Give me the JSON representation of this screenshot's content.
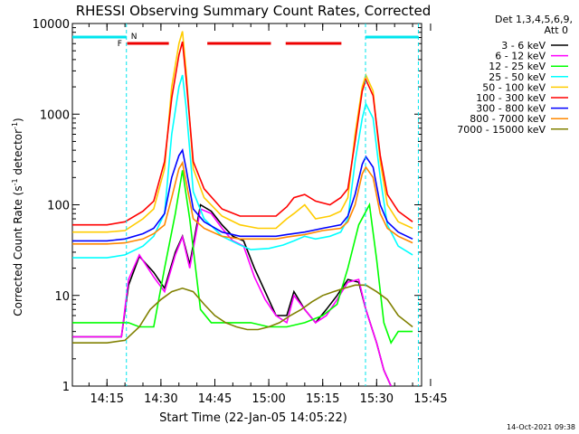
{
  "chart_data": {
    "type": "line",
    "title": "RHESSI Observing Summary Count Rates, Corrected",
    "ylabel": "Corrected Count Rate (s",
    "ylabel_sup1": "-1",
    "ylabel_mid": " detector",
    "ylabel_sup2": "-1",
    "ylabel_end": ")",
    "xlabel": "Start Time (22-Jan-05 14:05:22)",
    "y_scale": "log",
    "ylim": [
      1,
      10000
    ],
    "xlim_min": [
      5.37,
      102.5
    ],
    "ytick_values": [
      1,
      10,
      100,
      1000,
      10000
    ],
    "ytick_labels": [
      "1",
      "10",
      "100",
      "1000",
      "10000"
    ],
    "xtick_values": [
      15,
      30,
      45,
      60,
      75,
      90,
      105
    ],
    "xtick_labels": [
      "14:15",
      "14:30",
      "14:45",
      "15:00",
      "15:15",
      "15:30",
      "15:45"
    ],
    "legend_header": "Det 1,3,4,5,6,9,",
    "legend_subheader": "Att 0",
    "footer_date": "14-Oct-2021 09:38",
    "flag_labels": {
      "night": "N",
      "flare": "F"
    },
    "markers": {
      "night_lines_min": [
        20.4,
        86.9,
        101.6
      ],
      "night_bars": [
        [
          5.37,
          20.4
        ],
        [
          86.9,
          101.6
        ]
      ],
      "flare_bars": [
        [
          20.6,
          32.2
        ],
        [
          42.9,
          60.6
        ],
        [
          64.7,
          80.2
        ]
      ]
    },
    "series": [
      {
        "name": "3 - 6 keV",
        "color": "#000000",
        "x": [
          5.4,
          15,
          19,
          21,
          24,
          28,
          31,
          34,
          36,
          38,
          41,
          44,
          47,
          50,
          53,
          56,
          59,
          62,
          65,
          67,
          70,
          73,
          76,
          79,
          82,
          85,
          87,
          90,
          92,
          94
        ],
        "y": [
          3.5,
          3.5,
          3.5,
          13,
          27,
          18,
          12,
          30,
          45,
          22,
          100,
          85,
          60,
          45,
          40,
          20,
          11,
          6,
          6,
          11,
          7,
          5,
          7,
          10,
          15,
          14,
          7,
          3,
          1.5,
          1
        ]
      },
      {
        "name": "6 - 12 keV",
        "color": "#ff00ff",
        "x": [
          5.4,
          15,
          19,
          21,
          24,
          28,
          31,
          34,
          36,
          38,
          41,
          44,
          47,
          50,
          53,
          56,
          59,
          62,
          65,
          67,
          70,
          73,
          76,
          79,
          82,
          85,
          87,
          90,
          92,
          94
        ],
        "y": [
          3.5,
          3.5,
          3.5,
          15,
          28,
          16,
          11,
          28,
          44,
          20,
          90,
          80,
          55,
          40,
          35,
          16,
          9,
          6,
          5,
          10,
          7,
          5,
          6,
          9,
          14,
          15,
          7,
          3,
          1.5,
          1
        ]
      },
      {
        "name": "12 - 25 keV",
        "color": "#00ff00",
        "x": [
          5.4,
          15,
          19,
          21,
          24,
          28,
          31,
          34,
          36,
          38,
          41,
          44,
          47,
          50,
          55,
          60,
          65,
          70,
          75,
          79,
          82,
          85,
          88,
          90,
          92,
          94,
          96,
          99,
          100
        ],
        "y": [
          5,
          5,
          5,
          5,
          4.5,
          4.5,
          20,
          80,
          240,
          70,
          7,
          5,
          5,
          5,
          5,
          4.5,
          4.5,
          5,
          6,
          8,
          20,
          60,
          100,
          25,
          5,
          3,
          4,
          4,
          4
        ]
      },
      {
        "name": "25 - 50 keV",
        "color": "#00ffff",
        "x": [
          5.4,
          15,
          20,
          25,
          28,
          31,
          33,
          35,
          36,
          37,
          39,
          42,
          47,
          52,
          55,
          60,
          64,
          67,
          70,
          73,
          77,
          80,
          82,
          84,
          86,
          87,
          89,
          91,
          93,
          96,
          100
        ],
        "y": [
          26,
          26,
          28,
          35,
          45,
          80,
          600,
          2000,
          2700,
          1200,
          140,
          70,
          45,
          36,
          32,
          33,
          36,
          40,
          45,
          42,
          45,
          50,
          70,
          300,
          900,
          1300,
          900,
          200,
          60,
          35,
          28
        ]
      },
      {
        "name": "50 - 100 keV",
        "color": "#ffcc00",
        "x": [
          5.4,
          15,
          20,
          25,
          28,
          31,
          33,
          35,
          36,
          37,
          39,
          42,
          47,
          52,
          57,
          62,
          65,
          67,
          70,
          73,
          77,
          80,
          82,
          84,
          86,
          87,
          89,
          91,
          93,
          96,
          100
        ],
        "y": [
          50,
          50,
          52,
          70,
          90,
          250,
          2000,
          6000,
          8200,
          3000,
          250,
          120,
          75,
          60,
          55,
          55,
          70,
          80,
          100,
          70,
          75,
          85,
          120,
          600,
          2000,
          2700,
          1800,
          300,
          100,
          65,
          55
        ]
      },
      {
        "name": "100 - 300 keV",
        "color": "#ff0000",
        "x": [
          5.4,
          15,
          20,
          25,
          28,
          31,
          33,
          35,
          36,
          37,
          39,
          42,
          47,
          52,
          57,
          62,
          65,
          67,
          70,
          73,
          77,
          80,
          82,
          84,
          86,
          87,
          89,
          91,
          93,
          96,
          100
        ],
        "y": [
          60,
          60,
          65,
          85,
          110,
          300,
          1500,
          4500,
          6300,
          2500,
          300,
          150,
          90,
          75,
          75,
          75,
          95,
          120,
          130,
          110,
          100,
          120,
          150,
          500,
          1800,
          2400,
          1600,
          350,
          130,
          85,
          65
        ]
      },
      {
        "name": "300 - 800 keV",
        "color": "#0000ff",
        "x": [
          5.4,
          15,
          20,
          25,
          28,
          31,
          33,
          35,
          36,
          37,
          39,
          42,
          47,
          52,
          57,
          62,
          65,
          70,
          75,
          80,
          82,
          84,
          86,
          87,
          89,
          91,
          93,
          96,
          100
        ],
        "y": [
          40,
          40,
          42,
          48,
          55,
          80,
          200,
          350,
          400,
          250,
          90,
          65,
          50,
          45,
          45,
          45,
          47,
          50,
          55,
          60,
          75,
          130,
          280,
          340,
          260,
          100,
          65,
          50,
          42
        ]
      },
      {
        "name": "800 - 7000 keV",
        "color": "#ff8800",
        "x": [
          5.4,
          15,
          20,
          25,
          28,
          31,
          33,
          35,
          36,
          37,
          39,
          42,
          47,
          52,
          57,
          62,
          65,
          70,
          75,
          80,
          82,
          84,
          86,
          87,
          89,
          91,
          93,
          96,
          100
        ],
        "y": [
          37,
          37,
          38,
          42,
          48,
          60,
          120,
          250,
          290,
          180,
          70,
          55,
          45,
          42,
          42,
          42,
          44,
          47,
          52,
          55,
          65,
          100,
          220,
          260,
          200,
          80,
          55,
          45,
          38
        ]
      },
      {
        "name": "7000 - 15000 keV",
        "color": "#808000",
        "x": [
          5.4,
          15,
          20,
          24,
          27,
          30,
          33,
          36,
          39,
          42,
          45,
          48,
          51,
          54,
          57,
          60,
          63,
          66,
          69,
          72,
          75,
          78,
          81,
          84,
          87,
          90,
          93,
          96,
          100
        ],
        "y": [
          3,
          3,
          3.2,
          4.5,
          7,
          9,
          11,
          12,
          11,
          8,
          6,
          5,
          4.5,
          4.2,
          4.2,
          4.5,
          5,
          6,
          7,
          8.5,
          10,
          11,
          12,
          13,
          13,
          11,
          9,
          6,
          4.5
        ]
      }
    ]
  }
}
